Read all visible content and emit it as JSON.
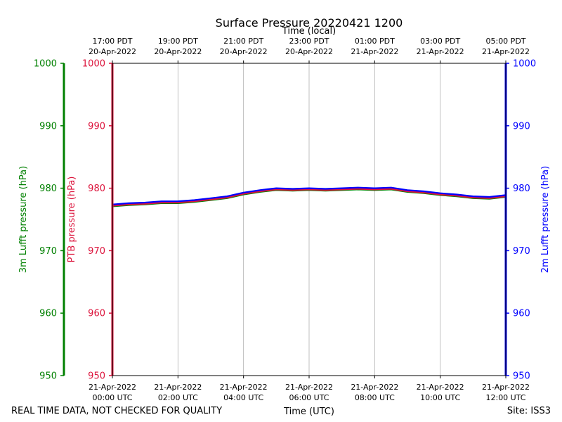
{
  "chart_data": {
    "type": "line",
    "title": "Surface Pressure 20220421 1200",
    "top_axis_label": "Time (local)",
    "xlabel": "Time (UTC)",
    "footer_left": "REAL TIME DATA, NOT CHECKED FOR QUALITY",
    "footer_right": "Site: ISS3",
    "x_range_hours": [
      0,
      12
    ],
    "ylim": [
      950,
      1000
    ],
    "y_ticks": [
      "950",
      "960",
      "970",
      "980",
      "990",
      "1000"
    ],
    "bottom_ticks": [
      {
        "hour": 0,
        "line1": "21-Apr-2022",
        "line2": "00:00 UTC"
      },
      {
        "hour": 2,
        "line1": "21-Apr-2022",
        "line2": "02:00 UTC"
      },
      {
        "hour": 4,
        "line1": "21-Apr-2022",
        "line2": "04:00 UTC"
      },
      {
        "hour": 6,
        "line1": "21-Apr-2022",
        "line2": "06:00 UTC"
      },
      {
        "hour": 8,
        "line1": "21-Apr-2022",
        "line2": "08:00 UTC"
      },
      {
        "hour": 10,
        "line1": "21-Apr-2022",
        "line2": "10:00 UTC"
      },
      {
        "hour": 12,
        "line1": "21-Apr-2022",
        "line2": "12:00 UTC"
      }
    ],
    "top_ticks": [
      {
        "hour": 0,
        "line1": "17:00 PDT",
        "line2": "20-Apr-2022"
      },
      {
        "hour": 2,
        "line1": "19:00 PDT",
        "line2": "20-Apr-2022"
      },
      {
        "hour": 4,
        "line1": "21:00 PDT",
        "line2": "20-Apr-2022"
      },
      {
        "hour": 6,
        "line1": "23:00 PDT",
        "line2": "20-Apr-2022"
      },
      {
        "hour": 8,
        "line1": "01:00 PDT",
        "line2": "21-Apr-2022"
      },
      {
        "hour": 10,
        "line1": "03:00 PDT",
        "line2": "21-Apr-2022"
      },
      {
        "hour": 12,
        "line1": "05:00 PDT",
        "line2": "21-Apr-2022"
      }
    ],
    "axes": {
      "far_left": {
        "label": "3m Lufft pressure (hPa)",
        "color": "#008000"
      },
      "left": {
        "label": "PTB pressure (hPa)",
        "color": "#dc143c"
      },
      "right": {
        "label": "2m Lufft pressure (hPa)",
        "color": "#0000ff"
      }
    },
    "series": [
      {
        "axis": "far_left",
        "color": "#008000",
        "x_hours": [
          0,
          0.5,
          1,
          1.5,
          2,
          2.5,
          3,
          3.5,
          4,
          4.5,
          5,
          5.5,
          6,
          6.5,
          7,
          7.5,
          8,
          8.5,
          9,
          9.5,
          10,
          10.5,
          11,
          11.5,
          12
        ],
        "values": [
          977.1,
          977.3,
          977.4,
          977.6,
          977.6,
          977.8,
          978.1,
          978.4,
          979.0,
          979.4,
          979.7,
          979.6,
          979.7,
          979.6,
          979.7,
          979.8,
          979.7,
          979.8,
          979.4,
          979.2,
          978.9,
          978.7,
          978.4,
          978.3,
          978.6
        ]
      },
      {
        "axis": "left",
        "color": "#dc143c",
        "x_hours": [
          0,
          0.5,
          1,
          1.5,
          2,
          2.5,
          3,
          3.5,
          4,
          4.5,
          5,
          5.5,
          6,
          6.5,
          7,
          7.5,
          8,
          8.5,
          9,
          9.5,
          10,
          10.5,
          11,
          11.5,
          12
        ],
        "values": [
          977.2,
          977.4,
          977.5,
          977.7,
          977.7,
          977.9,
          978.2,
          978.5,
          979.1,
          979.5,
          979.8,
          979.7,
          979.8,
          979.7,
          979.8,
          979.9,
          979.8,
          979.9,
          979.5,
          979.3,
          979.0,
          978.8,
          978.5,
          978.4,
          978.7
        ]
      },
      {
        "axis": "right",
        "color": "#0000ff",
        "x_hours": [
          0,
          0.5,
          1,
          1.5,
          2,
          2.5,
          3,
          3.5,
          4,
          4.5,
          5,
          5.5,
          6,
          6.5,
          7,
          7.5,
          8,
          8.5,
          9,
          9.5,
          10,
          10.5,
          11,
          11.5,
          12
        ],
        "values": [
          977.4,
          977.6,
          977.7,
          977.9,
          977.9,
          978.1,
          978.4,
          978.7,
          979.3,
          979.7,
          980.0,
          979.9,
          980.0,
          979.9,
          980.0,
          980.1,
          980.0,
          980.1,
          979.7,
          979.5,
          979.2,
          979.0,
          978.7,
          978.6,
          978.9
        ]
      }
    ],
    "grid": "vertical"
  }
}
